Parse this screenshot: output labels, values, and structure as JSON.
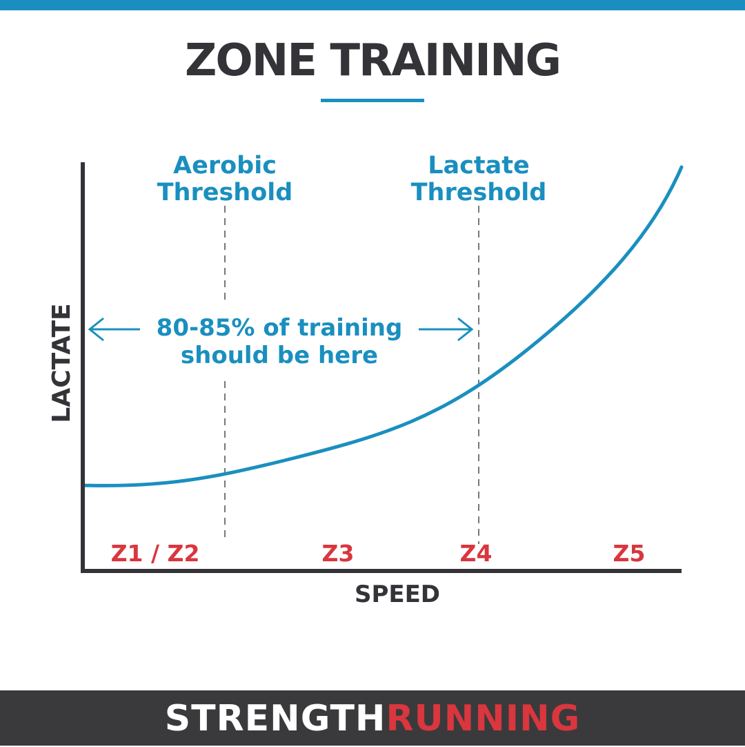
{
  "title": "ZONE TRAINING",
  "colors": {
    "accent": "#1a8fbf",
    "zone_label": "#d9363e",
    "text_dark": "#333338",
    "footer_bg": "#3a3a3c"
  },
  "axes": {
    "x_label": "SPEED",
    "y_label": "LACTATE"
  },
  "thresholds": [
    {
      "line1": "Aerobic",
      "line2": "Threshold"
    },
    {
      "line1": "Lactate",
      "line2": "Threshold"
    }
  ],
  "annotation": {
    "line1": "80-85% of training",
    "line2": "should be here"
  },
  "zones": [
    "Z1 / Z2",
    "Z3",
    "Z4",
    "Z5"
  ],
  "footer": {
    "brand_part1": "STRENGTH",
    "brand_part2": "RUNNING"
  }
}
